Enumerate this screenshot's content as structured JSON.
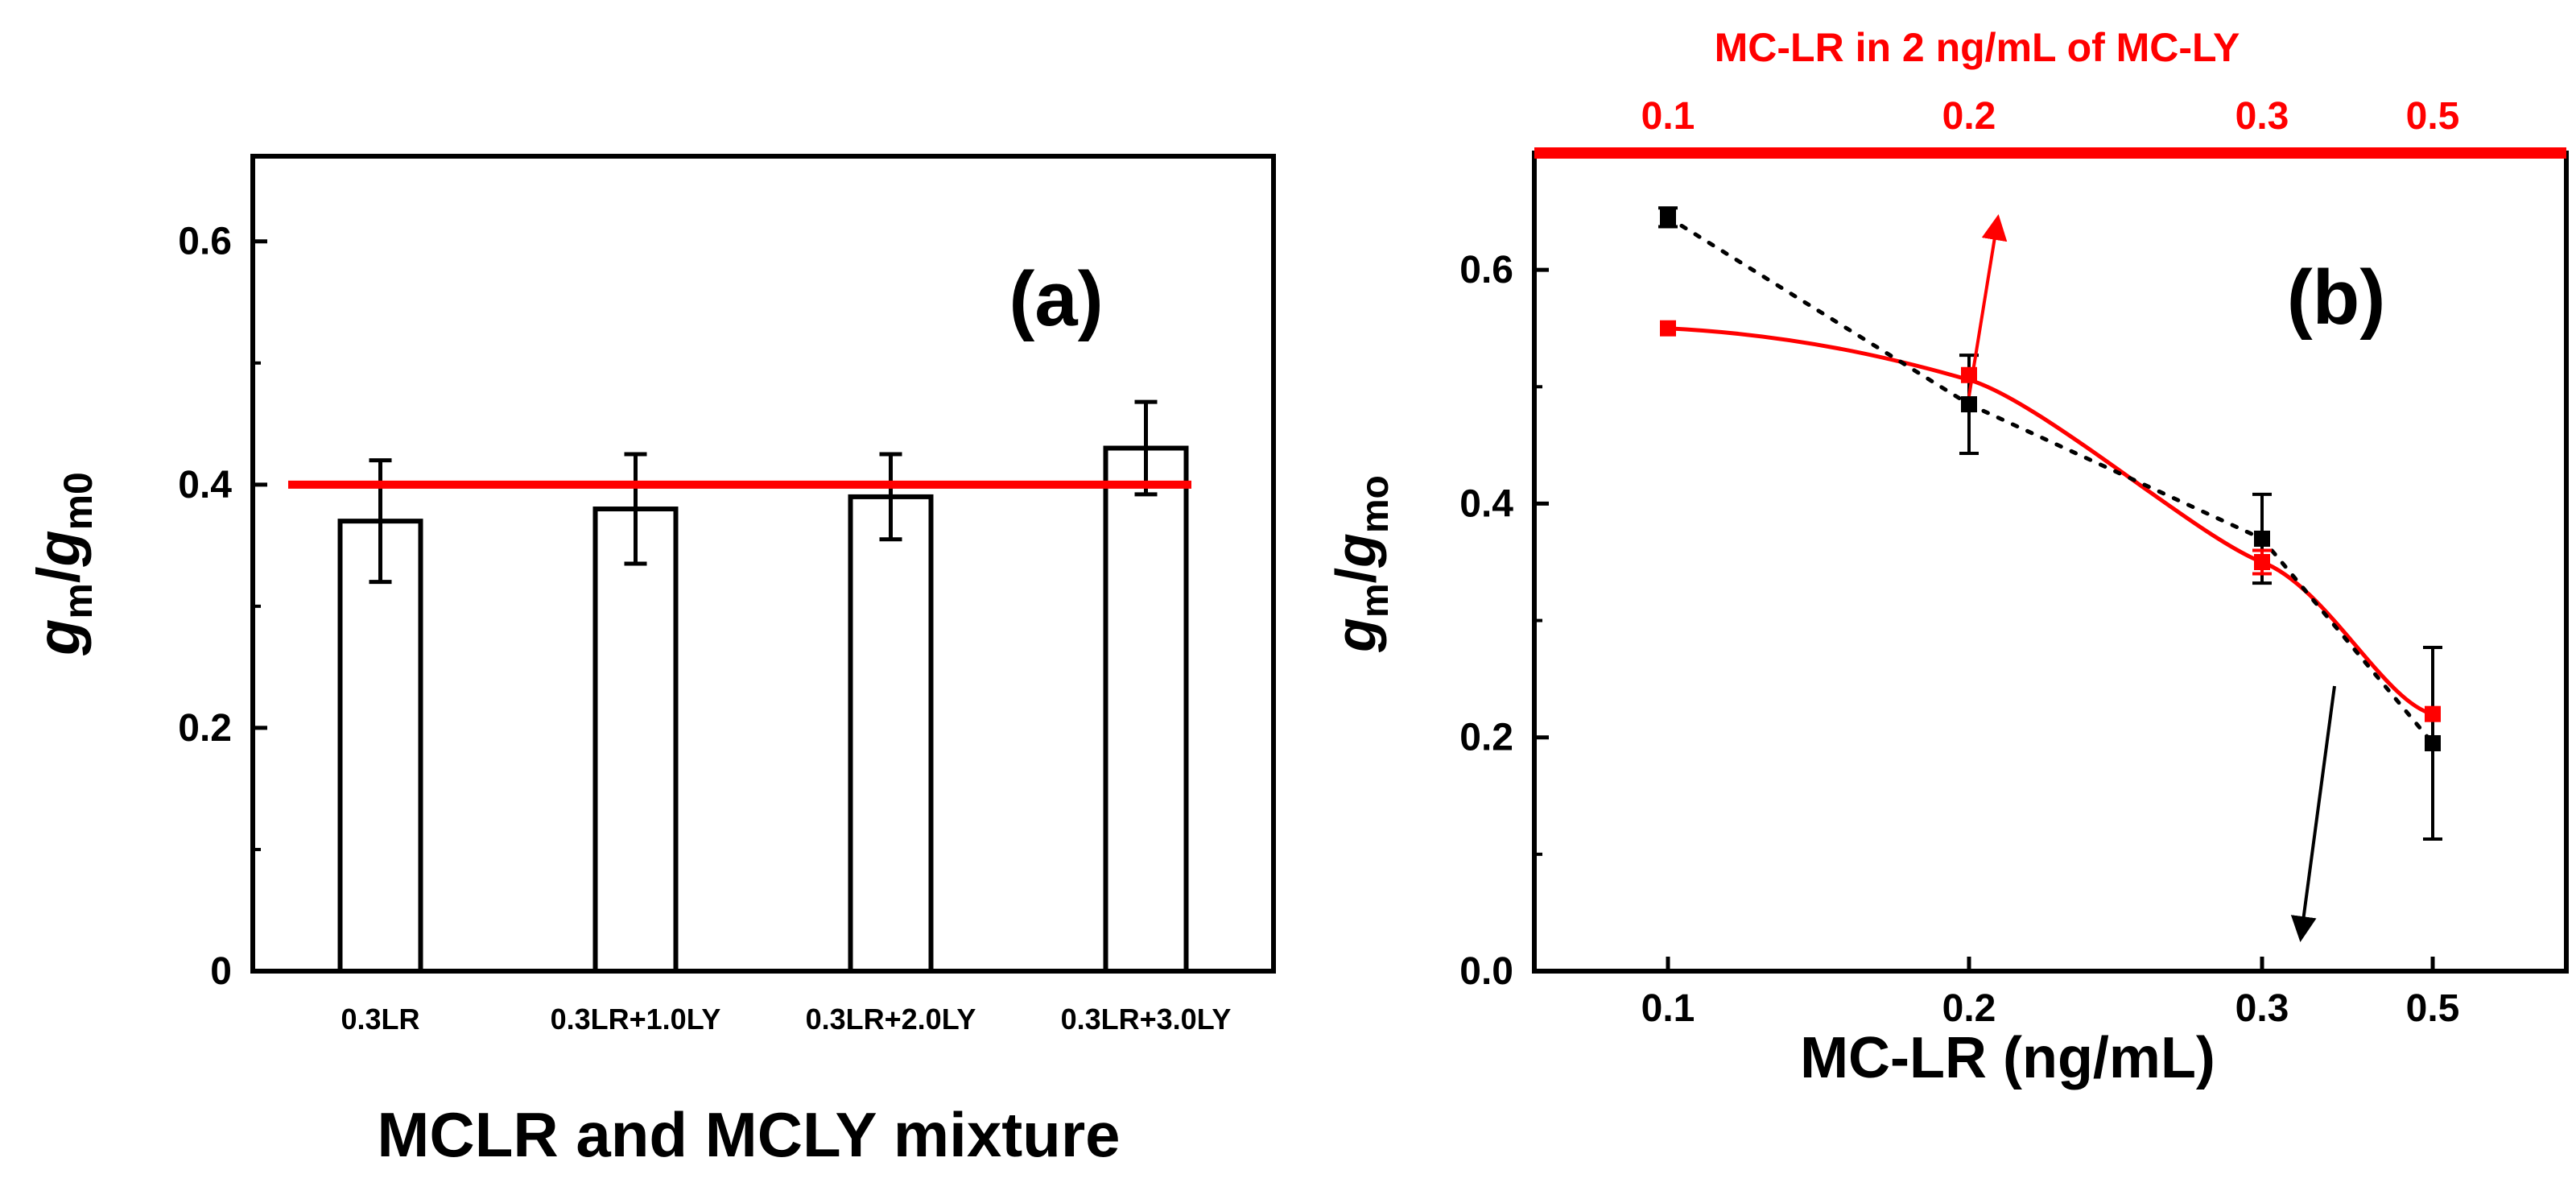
{
  "chart_data": [
    {
      "type": "bar",
      "panel_label": "(a)",
      "title": "",
      "xlabel": "MCLR and MCLY mixture",
      "ylabel": {
        "main1": "g",
        "sub1": "m",
        "mid": "/",
        "main2": "g",
        "sub2": "m0"
      },
      "ylim": [
        0,
        0.67
      ],
      "yticks": [
        0,
        0.2,
        0.4,
        0.6
      ],
      "ytick_labels": [
        "0",
        "0.2",
        "0.4",
        "0.6"
      ],
      "categories": [
        "0.3LR",
        "0.3LR+1.0LY",
        "0.3LR+2.0LY",
        "0.3LR+3.0LY"
      ],
      "values": [
        0.37,
        0.38,
        0.39,
        0.43
      ],
      "errors": [
        0.05,
        0.045,
        0.035,
        0.038
      ],
      "reference_line": {
        "value": 0.4,
        "color": "#ff0000"
      },
      "bar_fill": "#ffffff",
      "bar_stroke": "#000000"
    },
    {
      "type": "line",
      "panel_label": "(b)",
      "title": "",
      "xlabel": "MC-LR (ng/mL)",
      "top_axis_label": "MC-LR in 2 ng/mL of MC-LY",
      "ylabel": {
        "main1": "g",
        "sub1": "m",
        "mid": "/",
        "main2": "g",
        "sub2": "mo"
      },
      "ylim": [
        0,
        0.7
      ],
      "yticks": [
        0,
        0.2,
        0.4,
        0.6
      ],
      "ytick_labels": [
        "0.0",
        "0.2",
        "0.4",
        "0.6"
      ],
      "x_categories": [
        "0.1",
        "0.2",
        "0.3",
        "0.5"
      ],
      "top_categories": [
        "0.1",
        "0.2",
        "0.3",
        "0.5"
      ],
      "series": [
        {
          "name": "MC-LR",
          "color": "#000000",
          "style": "dotted",
          "x": [
            "0.1",
            "0.2",
            "0.3",
            "0.5"
          ],
          "values": [
            0.645,
            0.485,
            0.37,
            0.195
          ],
          "errors": [
            0.008,
            0.042,
            0.038,
            0.082
          ]
        },
        {
          "name": "MC-LR in 2 ng/mL of MC-LY",
          "color": "#ff0000",
          "style": "solid-fit",
          "x": [
            "0.1",
            "0.2",
            "0.3",
            "0.5"
          ],
          "values": [
            0.55,
            0.51,
            0.35,
            0.22
          ],
          "errors": [
            0,
            0,
            0.01,
            0
          ]
        }
      ],
      "colors": {
        "top_axis": "#ff0000",
        "red_series": "#ff0000",
        "black_series": "#000000"
      }
    }
  ]
}
